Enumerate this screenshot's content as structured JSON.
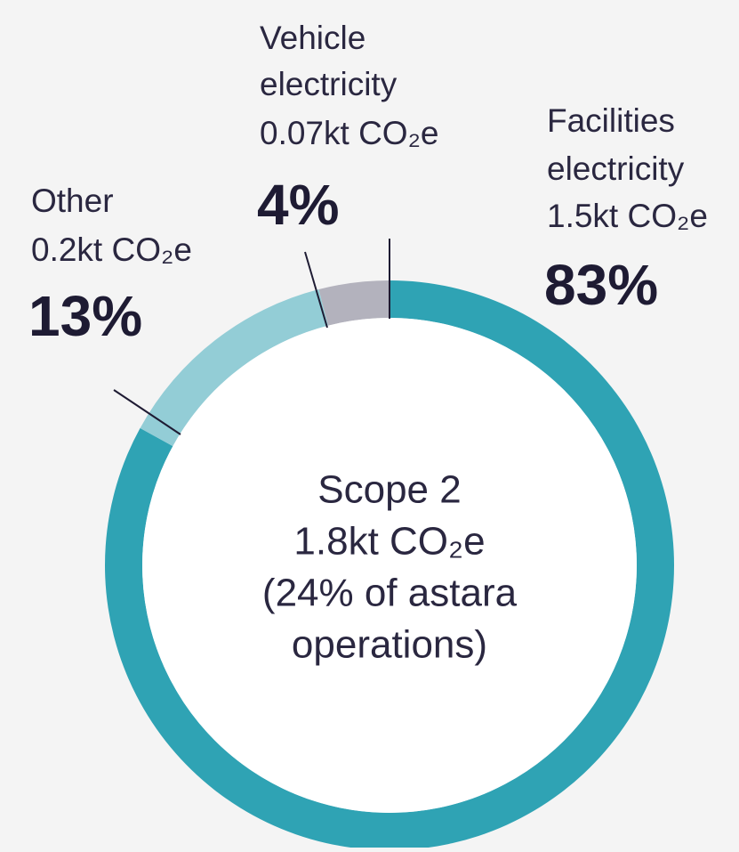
{
  "chart_data": {
    "type": "pie",
    "donut": true,
    "categories": [
      [
        "Facilities",
        "electricity",
        "1.5kt CO₂e"
      ],
      [
        "Other",
        "0.2kt CO₂e"
      ],
      [
        "Vehicle",
        "electricity",
        "0.07kt CO₂e"
      ]
    ],
    "values": [
      83,
      13,
      4
    ],
    "value_labels": [
      "83%",
      "13%",
      "4%"
    ],
    "colors": [
      "#2fa3b4",
      "#93cdd6",
      "#b3b2bd"
    ],
    "center_label": [
      "Scope 2",
      "1.8kt CO₂e",
      "(24% of astara",
      "operations)"
    ]
  }
}
